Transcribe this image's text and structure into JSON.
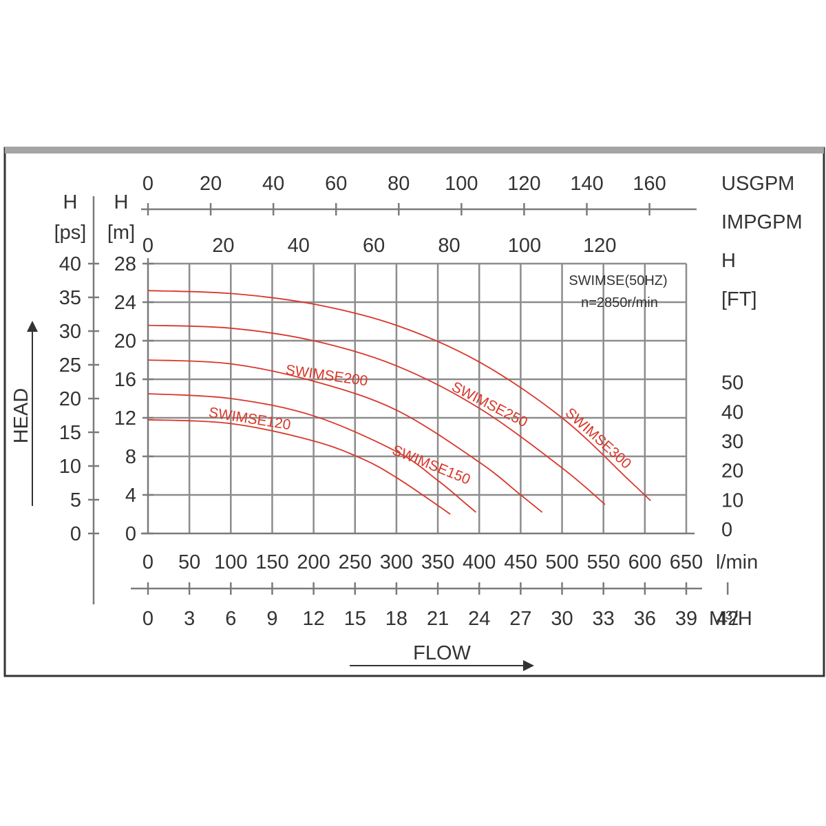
{
  "chart_data": {
    "type": "line",
    "note_line1": "SWIMSE(50HZ)",
    "note_line2": "n=2850r/min",
    "xlabel": "FLOW",
    "ylabel": "HEAD",
    "grid": true,
    "x_unit": "l/min",
    "xlim": [
      0,
      650
    ],
    "ylim_m": [
      0,
      28
    ],
    "axes": {
      "lmin": {
        "unit": "l/min",
        "ticks": [
          "0",
          "50",
          "100",
          "150",
          "200",
          "250",
          "300",
          "350",
          "400",
          "450",
          "500",
          "550",
          "600",
          "650"
        ]
      },
      "m3h": {
        "unit": "M³/H",
        "ticks": [
          "0",
          "3",
          "6",
          "9",
          "12",
          "15",
          "18",
          "21",
          "24",
          "27",
          "30",
          "33",
          "36",
          "39",
          "42"
        ]
      },
      "usgpm": {
        "unit": "USGPM",
        "ticks": [
          "0",
          "20",
          "40",
          "60",
          "80",
          "100",
          "120",
          "140",
          "160"
        ]
      },
      "impgpm": {
        "unit": "IMPGPM",
        "ticks": [
          "0",
          "20",
          "40",
          "60",
          "80",
          "100",
          "120"
        ]
      },
      "h_ps": {
        "unit_line1": "H",
        "unit_line2": "[ps]",
        "ticks": [
          "0",
          "5",
          "10",
          "15",
          "20",
          "25",
          "30",
          "35",
          "40"
        ]
      },
      "h_m": {
        "unit_line1": "H",
        "unit_line2": "[m]",
        "ticks": [
          "0",
          "4",
          "8",
          "12",
          "16",
          "20",
          "24",
          "28"
        ]
      },
      "h_ft": {
        "unit_line1": "H",
        "unit_line2": "[FT]",
        "ticks": [
          "0",
          "10",
          "20",
          "30",
          "40",
          "50"
        ]
      }
    },
    "series": [
      {
        "name": "SWIMSE120",
        "x": [
          0,
          100,
          200,
          260,
          300,
          340,
          365
        ],
        "y": [
          11.8,
          11.4,
          9.6,
          7.7,
          5.8,
          3.5,
          2.0
        ]
      },
      {
        "name": "SWIMSE150",
        "x": [
          0,
          100,
          200,
          300,
          350,
          385,
          396
        ],
        "y": [
          14.5,
          14.0,
          12.2,
          8.5,
          5.5,
          3.0,
          2.2
        ]
      },
      {
        "name": "SWIMSE200",
        "x": [
          0,
          100,
          200,
          300,
          400,
          450,
          476
        ],
        "y": [
          18.0,
          17.6,
          15.8,
          12.8,
          7.4,
          4.0,
          2.2
        ]
      },
      {
        "name": "SWIMSE250",
        "x": [
          0,
          100,
          200,
          300,
          400,
          500,
          552
        ],
        "y": [
          21.6,
          21.3,
          20.0,
          17.4,
          13.0,
          6.8,
          3.0
        ]
      },
      {
        "name": "SWIMSE300",
        "x": [
          0,
          100,
          200,
          300,
          400,
          500,
          580,
          607
        ],
        "y": [
          25.2,
          24.9,
          23.8,
          21.6,
          17.8,
          12.0,
          5.6,
          3.4
        ]
      }
    ],
    "colors": {
      "curve": "#d9372a",
      "grid": "#8c8c8c",
      "axis": "#7a7a7a",
      "frame": "#333333",
      "topbar": "#a5a5a5"
    }
  }
}
